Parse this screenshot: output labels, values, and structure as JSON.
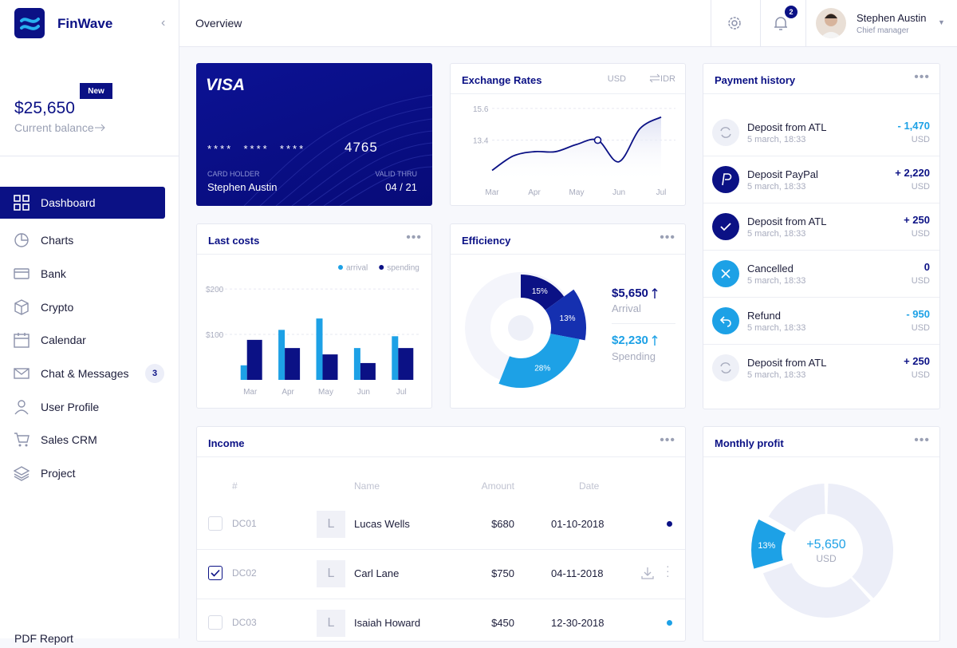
{
  "brand": "FinWave",
  "page_title": "Overview",
  "notifications": 2,
  "user": {
    "name": "Stephen Austin",
    "role": "Chief manager"
  },
  "balance": {
    "badge": "New",
    "amount": "$25,650",
    "label": "Current balance"
  },
  "nav": [
    {
      "label": "Dashboard"
    },
    {
      "label": "Charts"
    },
    {
      "label": "Bank"
    },
    {
      "label": "Crypto"
    },
    {
      "label": "Calendar"
    },
    {
      "label": "Chat & Messages",
      "badge": 3
    },
    {
      "label": "User Profile"
    },
    {
      "label": "Sales CRM"
    },
    {
      "label": "Project"
    }
  ],
  "footer_link": "PDF Report",
  "card": {
    "brand": "VISA",
    "number_mask": "****  ****  ****",
    "last4": "4765",
    "holder_label": "CARD HOLDER",
    "holder": "Stephen Austin",
    "valid_label": "VALID THRU",
    "valid": "04 / 21"
  },
  "exchange_rates": {
    "type": "line",
    "title": "Exchange Rates",
    "from": "USD",
    "to": "IDR",
    "color": "#0b1185",
    "categories": [
      "Mar",
      null,
      "Apr",
      null,
      "May",
      null,
      "Jun",
      null,
      "Jul"
    ],
    "values": [
      11.3,
      12.3,
      12.6,
      12.6,
      13.1,
      13.4,
      11.9,
      14.2,
      15.0
    ],
    "highlight": 5,
    "ylim": [
      10.5,
      16.2
    ],
    "yticks": [
      13.4,
      15.6
    ],
    "grid": true
  },
  "last_costs": {
    "type": "bar",
    "title": "Last costs",
    "categories": [
      "Mar",
      "Apr",
      "May",
      "Jun",
      "Jul"
    ],
    "series": [
      {
        "name": "arrival",
        "color": "#1da1e6",
        "values": [
          32,
          110,
          135,
          70,
          96
        ]
      },
      {
        "name": "spending",
        "color": "#0b1185",
        "values": [
          88,
          70,
          56,
          37,
          70
        ]
      }
    ],
    "ylim": [
      0,
      230
    ],
    "yticks": [
      {
        "value": 100,
        "label": "$100"
      },
      {
        "value": 200,
        "label": "$200"
      }
    ],
    "grid": true
  },
  "efficiency": {
    "type": "pie",
    "title": "Efficiency",
    "values": [
      15,
      13,
      28
    ],
    "value_labels": [
      "15%",
      "13%",
      "28%"
    ],
    "colors": [
      "#0b1185",
      "#1530b0",
      "#1da1e6"
    ],
    "stats": [
      {
        "amount": "$5,650",
        "label": "Arrival"
      },
      {
        "amount": "$2,230",
        "label": "Spending"
      }
    ]
  },
  "payments": {
    "title": "Payment history",
    "items": [
      {
        "title": "Deposit from ATL",
        "date": "5 march, 18:33",
        "amount": "- 1,470",
        "currency": "USD"
      },
      {
        "title": "Deposit PayPal",
        "date": "5 march, 18:33",
        "amount": "+ 2,220",
        "currency": "USD"
      },
      {
        "title": "Deposit from ATL",
        "date": "5 march, 18:33",
        "amount": "+ 250",
        "currency": "USD"
      },
      {
        "title": "Cancelled",
        "date": "5 march, 18:33",
        "amount": "0",
        "currency": "USD"
      },
      {
        "title": "Refund",
        "date": "5 march, 18:33",
        "amount": "- 950",
        "currency": "USD"
      },
      {
        "title": "Deposit from ATL",
        "date": "5 march, 18:33",
        "amount": "+ 250",
        "currency": "USD"
      }
    ]
  },
  "income": {
    "title": "Income",
    "columns": [
      "#",
      "Name",
      "Amount",
      "Date"
    ],
    "rows": [
      {
        "id": "DC01",
        "avatar": "L",
        "name": "Lucas Wells",
        "amount": "$680",
        "date": "01-10-2018"
      },
      {
        "id": "DC02",
        "avatar": "L",
        "name": "Carl Lane",
        "amount": "$750",
        "date": "04-11-2018"
      },
      {
        "id": "DC03",
        "avatar": "L",
        "name": "Isaiah Howard",
        "amount": "$450",
        "date": "12-30-2018"
      }
    ]
  },
  "monthly_profit": {
    "type": "pie",
    "title": "Monthly profit",
    "values": [
      38,
      32,
      13,
      17
    ],
    "value_labels": [
      null,
      null,
      "13%",
      null
    ],
    "colors": [
      "#eceef8",
      "#eceef8",
      "#1da1e6",
      "#eceef8"
    ],
    "center": "+5,650",
    "center_sub": "USD"
  }
}
